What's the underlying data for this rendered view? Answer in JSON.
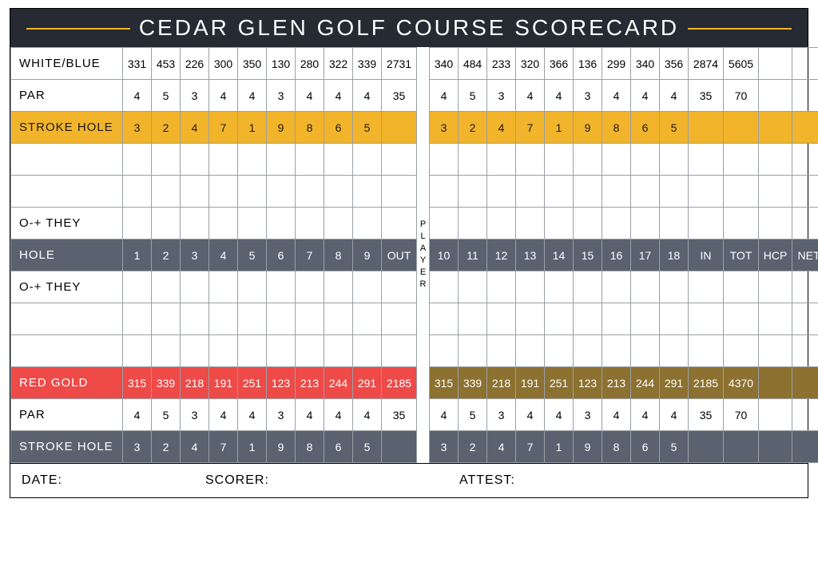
{
  "title": "CEDAR GLEN GOLF COURSE SCORECARD",
  "player_label": "PLAYER",
  "colwidths": {
    "label": 140,
    "cell": 36,
    "out": 44,
    "player": 16,
    "in": 44,
    "tot": 44,
    "extra": 42
  },
  "rows": [
    {
      "kind": "plain",
      "label": "WHITE/BLUE",
      "front": [
        "331",
        "453",
        "226",
        "300",
        "350",
        "130",
        "280",
        "322",
        "339",
        "2731"
      ],
      "back": [
        "340",
        "484",
        "233",
        "320",
        "366",
        "136",
        "299",
        "340",
        "356",
        "2874",
        "5605",
        "",
        ""
      ]
    },
    {
      "kind": "plain",
      "label": "PAR",
      "front": [
        "4",
        "5",
        "3",
        "4",
        "4",
        "3",
        "4",
        "4",
        "4",
        "35"
      ],
      "back": [
        "4",
        "5",
        "3",
        "4",
        "4",
        "3",
        "4",
        "4",
        "4",
        "35",
        "70",
        "",
        ""
      ]
    },
    {
      "kind": "yellow",
      "label": "STROKE HOLE",
      "front": [
        "3",
        "2",
        "4",
        "7",
        "1",
        "9",
        "8",
        "6",
        "5",
        ""
      ],
      "back": [
        "3",
        "2",
        "4",
        "7",
        "1",
        "9",
        "8",
        "6",
        "5",
        "",
        "",
        "",
        ""
      ]
    },
    {
      "kind": "blank"
    },
    {
      "kind": "blank"
    },
    {
      "kind": "plain",
      "label": "O-+ THEY",
      "front": [
        "",
        "",
        "",
        "",
        "",
        "",
        "",
        "",
        "",
        ""
      ],
      "back": [
        "",
        "",
        "",
        "",
        "",
        "",
        "",
        "",
        "",
        "",
        "",
        "",
        ""
      ]
    },
    {
      "kind": "darkhdr",
      "label": "HOLE",
      "front": [
        "1",
        "2",
        "3",
        "4",
        "5",
        "6",
        "7",
        "8",
        "9",
        "OUT"
      ],
      "back": [
        "10",
        "11",
        "12",
        "13",
        "14",
        "15",
        "16",
        "17",
        "18",
        "IN",
        "TOT",
        "HCP",
        "NET"
      ]
    },
    {
      "kind": "plain",
      "label": "O-+ THEY",
      "front": [
        "",
        "",
        "",
        "",
        "",
        "",
        "",
        "",
        "",
        ""
      ],
      "back": [
        "",
        "",
        "",
        "",
        "",
        "",
        "",
        "",
        "",
        "",
        "",
        "",
        ""
      ]
    },
    {
      "kind": "blank"
    },
    {
      "kind": "blank"
    },
    {
      "kind": "red",
      "label": "RED GOLD",
      "front": [
        "315",
        "339",
        "218",
        "191",
        "251",
        "123",
        "213",
        "244",
        "291",
        "2185"
      ],
      "back": [
        "315",
        "339",
        "218",
        "191",
        "251",
        "123",
        "213",
        "244",
        "291",
        "2185",
        "4370",
        "",
        ""
      ]
    },
    {
      "kind": "plain",
      "label": "PAR",
      "front": [
        "4",
        "5",
        "3",
        "4",
        "4",
        "3",
        "4",
        "4",
        "4",
        "35"
      ],
      "back": [
        "4",
        "5",
        "3",
        "4",
        "4",
        "3",
        "4",
        "4",
        "4",
        "35",
        "70",
        "",
        ""
      ]
    },
    {
      "kind": "strokegray",
      "label": "STROKE HOLE",
      "front": [
        "3",
        "2",
        "4",
        "7",
        "1",
        "9",
        "8",
        "6",
        "5",
        ""
      ],
      "back": [
        "3",
        "2",
        "4",
        "7",
        "1",
        "9",
        "8",
        "6",
        "5",
        "",
        "",
        "",
        ""
      ]
    }
  ],
  "footer": {
    "date": "DATE:",
    "scorer": "SCORER:",
    "attest": "ATTEST:"
  },
  "colors": {
    "header_bg": "#252a33",
    "accent": "#f2b42b",
    "gray": "#5a6270",
    "red": "#ee4a48",
    "olive": "#8c7130",
    "border": "#9aa0a6"
  }
}
